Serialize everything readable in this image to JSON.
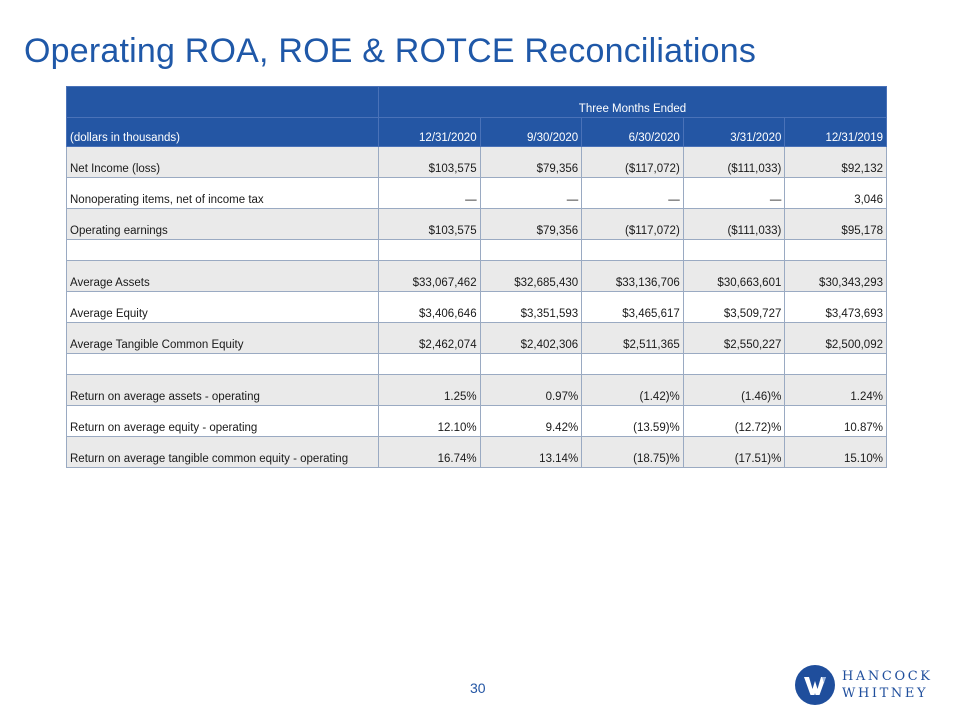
{
  "title": "Operating ROA, ROE & ROTCE Reconciliations",
  "table": {
    "span_header": "Three Months Ended",
    "label_header": "(dollars in thousands)",
    "columns": [
      "12/31/2020",
      "9/30/2020",
      "6/30/2020",
      "3/31/2020",
      "12/31/2019"
    ],
    "rows": [
      {
        "label": "Net Income (loss)",
        "values": [
          "$103,575",
          "$79,356",
          "($117,072)",
          "($111,033)",
          "$92,132"
        ]
      },
      {
        "label": "Nonoperating items, net of income tax",
        "values": [
          "—",
          "—",
          "—",
          "—",
          "3,046"
        ]
      },
      {
        "label": "Operating earnings",
        "values": [
          "$103,575",
          "$79,356",
          "($117,072)",
          "($111,033)",
          "$95,178"
        ]
      },
      {
        "label": "",
        "values": [
          "",
          "",
          "",
          "",
          ""
        ]
      },
      {
        "label": "Average Assets",
        "values": [
          "$33,067,462",
          "$32,685,430",
          "$33,136,706",
          "$30,663,601",
          "$30,343,293"
        ]
      },
      {
        "label": "Average Equity",
        "values": [
          "$3,406,646",
          "$3,351,593",
          "$3,465,617",
          "$3,509,727",
          "$3,473,693"
        ]
      },
      {
        "label": "Average Tangible Common Equity",
        "values": [
          "$2,462,074",
          "$2,402,306",
          "$2,511,365",
          "$2,550,227",
          "$2,500,092"
        ]
      },
      {
        "label": "",
        "values": [
          "",
          "",
          "",
          "",
          ""
        ]
      },
      {
        "label": "Return on average assets - operating",
        "values": [
          "1.25%",
          "0.97%",
          "(1.42)%",
          "(1.46)%",
          "1.24%"
        ]
      },
      {
        "label": "Return on average equity - operating",
        "values": [
          "12.10%",
          "9.42%",
          "(13.59)%",
          "(12.72)%",
          "10.87%"
        ]
      },
      {
        "label": "Return on average tangible common equity - operating",
        "values": [
          "16.74%",
          "13.14%",
          "(18.75)%",
          "(17.51)%",
          "15.10%"
        ]
      }
    ]
  },
  "page_number": "30",
  "logo": {
    "line1": "HANCOCK",
    "line2": "WHITNEY",
    "color": "#1f4e9c"
  },
  "colors": {
    "title": "#1f58a8",
    "header_bg": "#2456a4",
    "row_shade": "#eaeaea"
  }
}
